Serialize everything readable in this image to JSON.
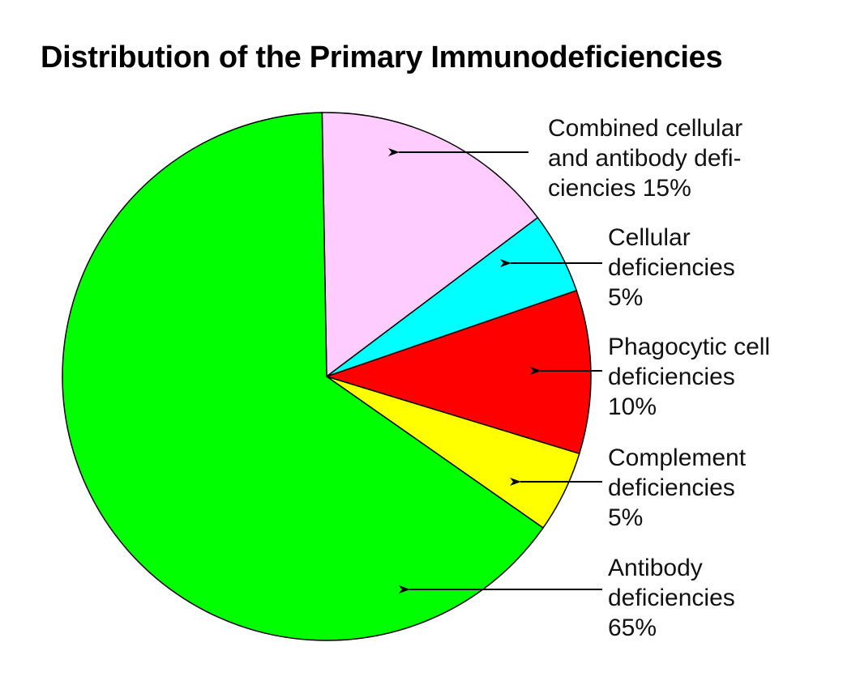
{
  "chart_data": {
    "type": "pie",
    "title": "Distribution of the Primary Immunodeficiencies",
    "start_angle": "top",
    "direction": "clockwise",
    "slices": [
      {
        "name": "Combined cellular and antibody deficiencies",
        "value": 15,
        "color": "#ffccff",
        "label_lines": [
          "Combined cellular",
          "and antibody defi-",
          "ciencies 15%"
        ]
      },
      {
        "name": "Cellular deficiencies",
        "value": 5,
        "color": "#00ffff",
        "label_lines": [
          "Cellular",
          "deficiencies",
          "5%"
        ]
      },
      {
        "name": "Phagocytic cell deficiencies",
        "value": 10,
        "color": "#ff0000",
        "label_lines": [
          "Phagocytic cell",
          "deficiencies",
          "10%"
        ]
      },
      {
        "name": "Complement deficiencies",
        "value": 5,
        "color": "#ffff00",
        "label_lines": [
          "Complement",
          "deficiencies",
          "5%"
        ]
      },
      {
        "name": "Antibody deficiencies",
        "value": 65,
        "color": "#00ff00",
        "label_lines": [
          "Antibody",
          "deficiencies",
          "65%"
        ]
      }
    ]
  }
}
